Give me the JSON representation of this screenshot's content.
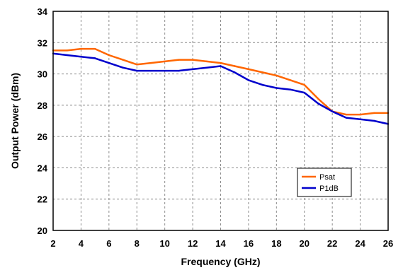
{
  "chart_data": {
    "type": "line",
    "xlabel": "Frequency (GHz)",
    "ylabel": "Output Power (dBm)",
    "xlim": [
      2,
      26
    ],
    "ylim": [
      20,
      34
    ],
    "x_ticks": [
      2,
      4,
      6,
      8,
      10,
      12,
      14,
      16,
      18,
      20,
      22,
      24,
      26
    ],
    "y_ticks": [
      20,
      22,
      24,
      26,
      28,
      30,
      32,
      34
    ],
    "grid": true,
    "legend_position": "bottom-right",
    "series": [
      {
        "name": "Psat",
        "color": "#FF6600",
        "points": [
          [
            2,
            31.5
          ],
          [
            3,
            31.5
          ],
          [
            4,
            31.6
          ],
          [
            5,
            31.6
          ],
          [
            6,
            31.2
          ],
          [
            7,
            30.9
          ],
          [
            8,
            30.6
          ],
          [
            9,
            30.7
          ],
          [
            10,
            30.8
          ],
          [
            11,
            30.9
          ],
          [
            12,
            30.9
          ],
          [
            13,
            30.8
          ],
          [
            14,
            30.7
          ],
          [
            15,
            30.5
          ],
          [
            16,
            30.3
          ],
          [
            17,
            30.1
          ],
          [
            18,
            29.9
          ],
          [
            19,
            29.6
          ],
          [
            20,
            29.3
          ],
          [
            21,
            28.4
          ],
          [
            22,
            27.6
          ],
          [
            23,
            27.4
          ],
          [
            24,
            27.4
          ],
          [
            25,
            27.5
          ],
          [
            26,
            27.5
          ]
        ]
      },
      {
        "name": "P1dB",
        "color": "#0000CC",
        "points": [
          [
            2,
            31.3
          ],
          [
            3,
            31.2
          ],
          [
            4,
            31.1
          ],
          [
            5,
            31.0
          ],
          [
            6,
            30.7
          ],
          [
            7,
            30.4
          ],
          [
            8,
            30.2
          ],
          [
            9,
            30.2
          ],
          [
            10,
            30.2
          ],
          [
            11,
            30.2
          ],
          [
            12,
            30.3
          ],
          [
            13,
            30.4
          ],
          [
            14,
            30.5
          ],
          [
            15,
            30.1
          ],
          [
            16,
            29.6
          ],
          [
            17,
            29.3
          ],
          [
            18,
            29.1
          ],
          [
            19,
            29.0
          ],
          [
            20,
            28.8
          ],
          [
            21,
            28.1
          ],
          [
            22,
            27.6
          ],
          [
            23,
            27.2
          ],
          [
            24,
            27.1
          ],
          [
            25,
            27.0
          ],
          [
            26,
            26.8
          ]
        ]
      }
    ]
  }
}
